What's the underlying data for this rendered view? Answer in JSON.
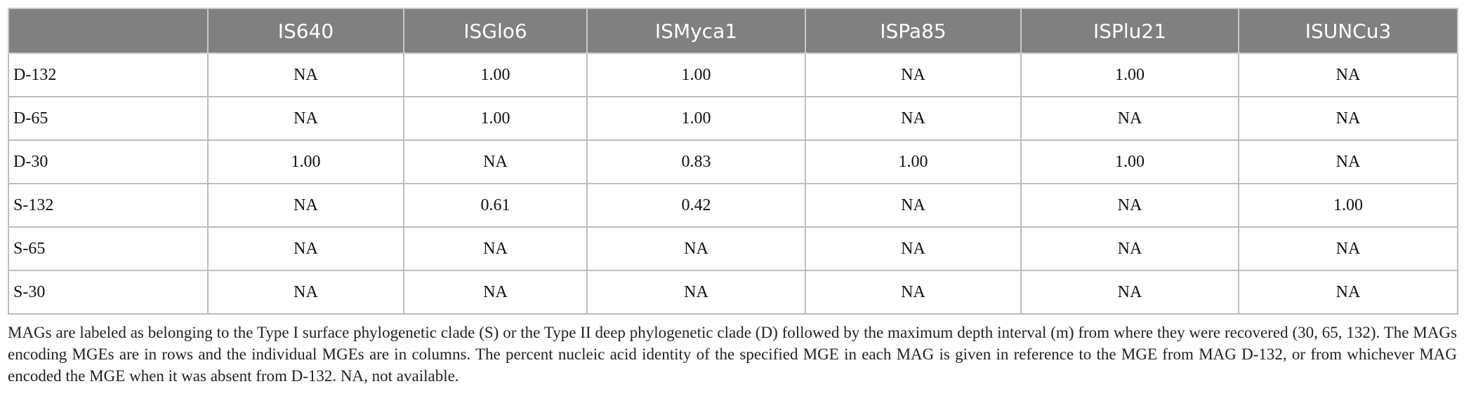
{
  "table": {
    "columns": [
      "IS640",
      "ISGlo6",
      "ISMyca1",
      "ISPa85",
      "ISPlu21",
      "ISUNCu3"
    ],
    "rows": [
      [
        "D-132",
        "NA",
        "1.00",
        "1.00",
        "NA",
        "1.00",
        "NA"
      ],
      [
        "D-65",
        "NA",
        "1.00",
        "1.00",
        "NA",
        "NA",
        "NA"
      ],
      [
        "D-30",
        "1.00",
        "NA",
        "0.83",
        "1.00",
        "1.00",
        "NA"
      ],
      [
        "S-132",
        "NA",
        "0.61",
        "0.42",
        "NA",
        "NA",
        "1.00"
      ],
      [
        "S-65",
        "NA",
        "NA",
        "NA",
        "NA",
        "NA",
        "NA"
      ],
      [
        "S-30",
        "NA",
        "NA",
        "NA",
        "NA",
        "NA",
        "NA"
      ]
    ]
  },
  "note": "MAGs are labeled as belonging to the Type I surface phylogenetic clade (S) or the Type II deep phylogenetic clade (D) followed by the maximum depth interval (m) from where they were recovered (30, 65, 132). The MAGs encoding MGEs are in rows and the individual MGEs are in columns. The percent nucleic acid identity of the specified MGE in each MAG is given in reference to the MGE from MAG D-132, or from whichever MAG encoded the MGE when it was absent from D-132. NA, not available."
}
